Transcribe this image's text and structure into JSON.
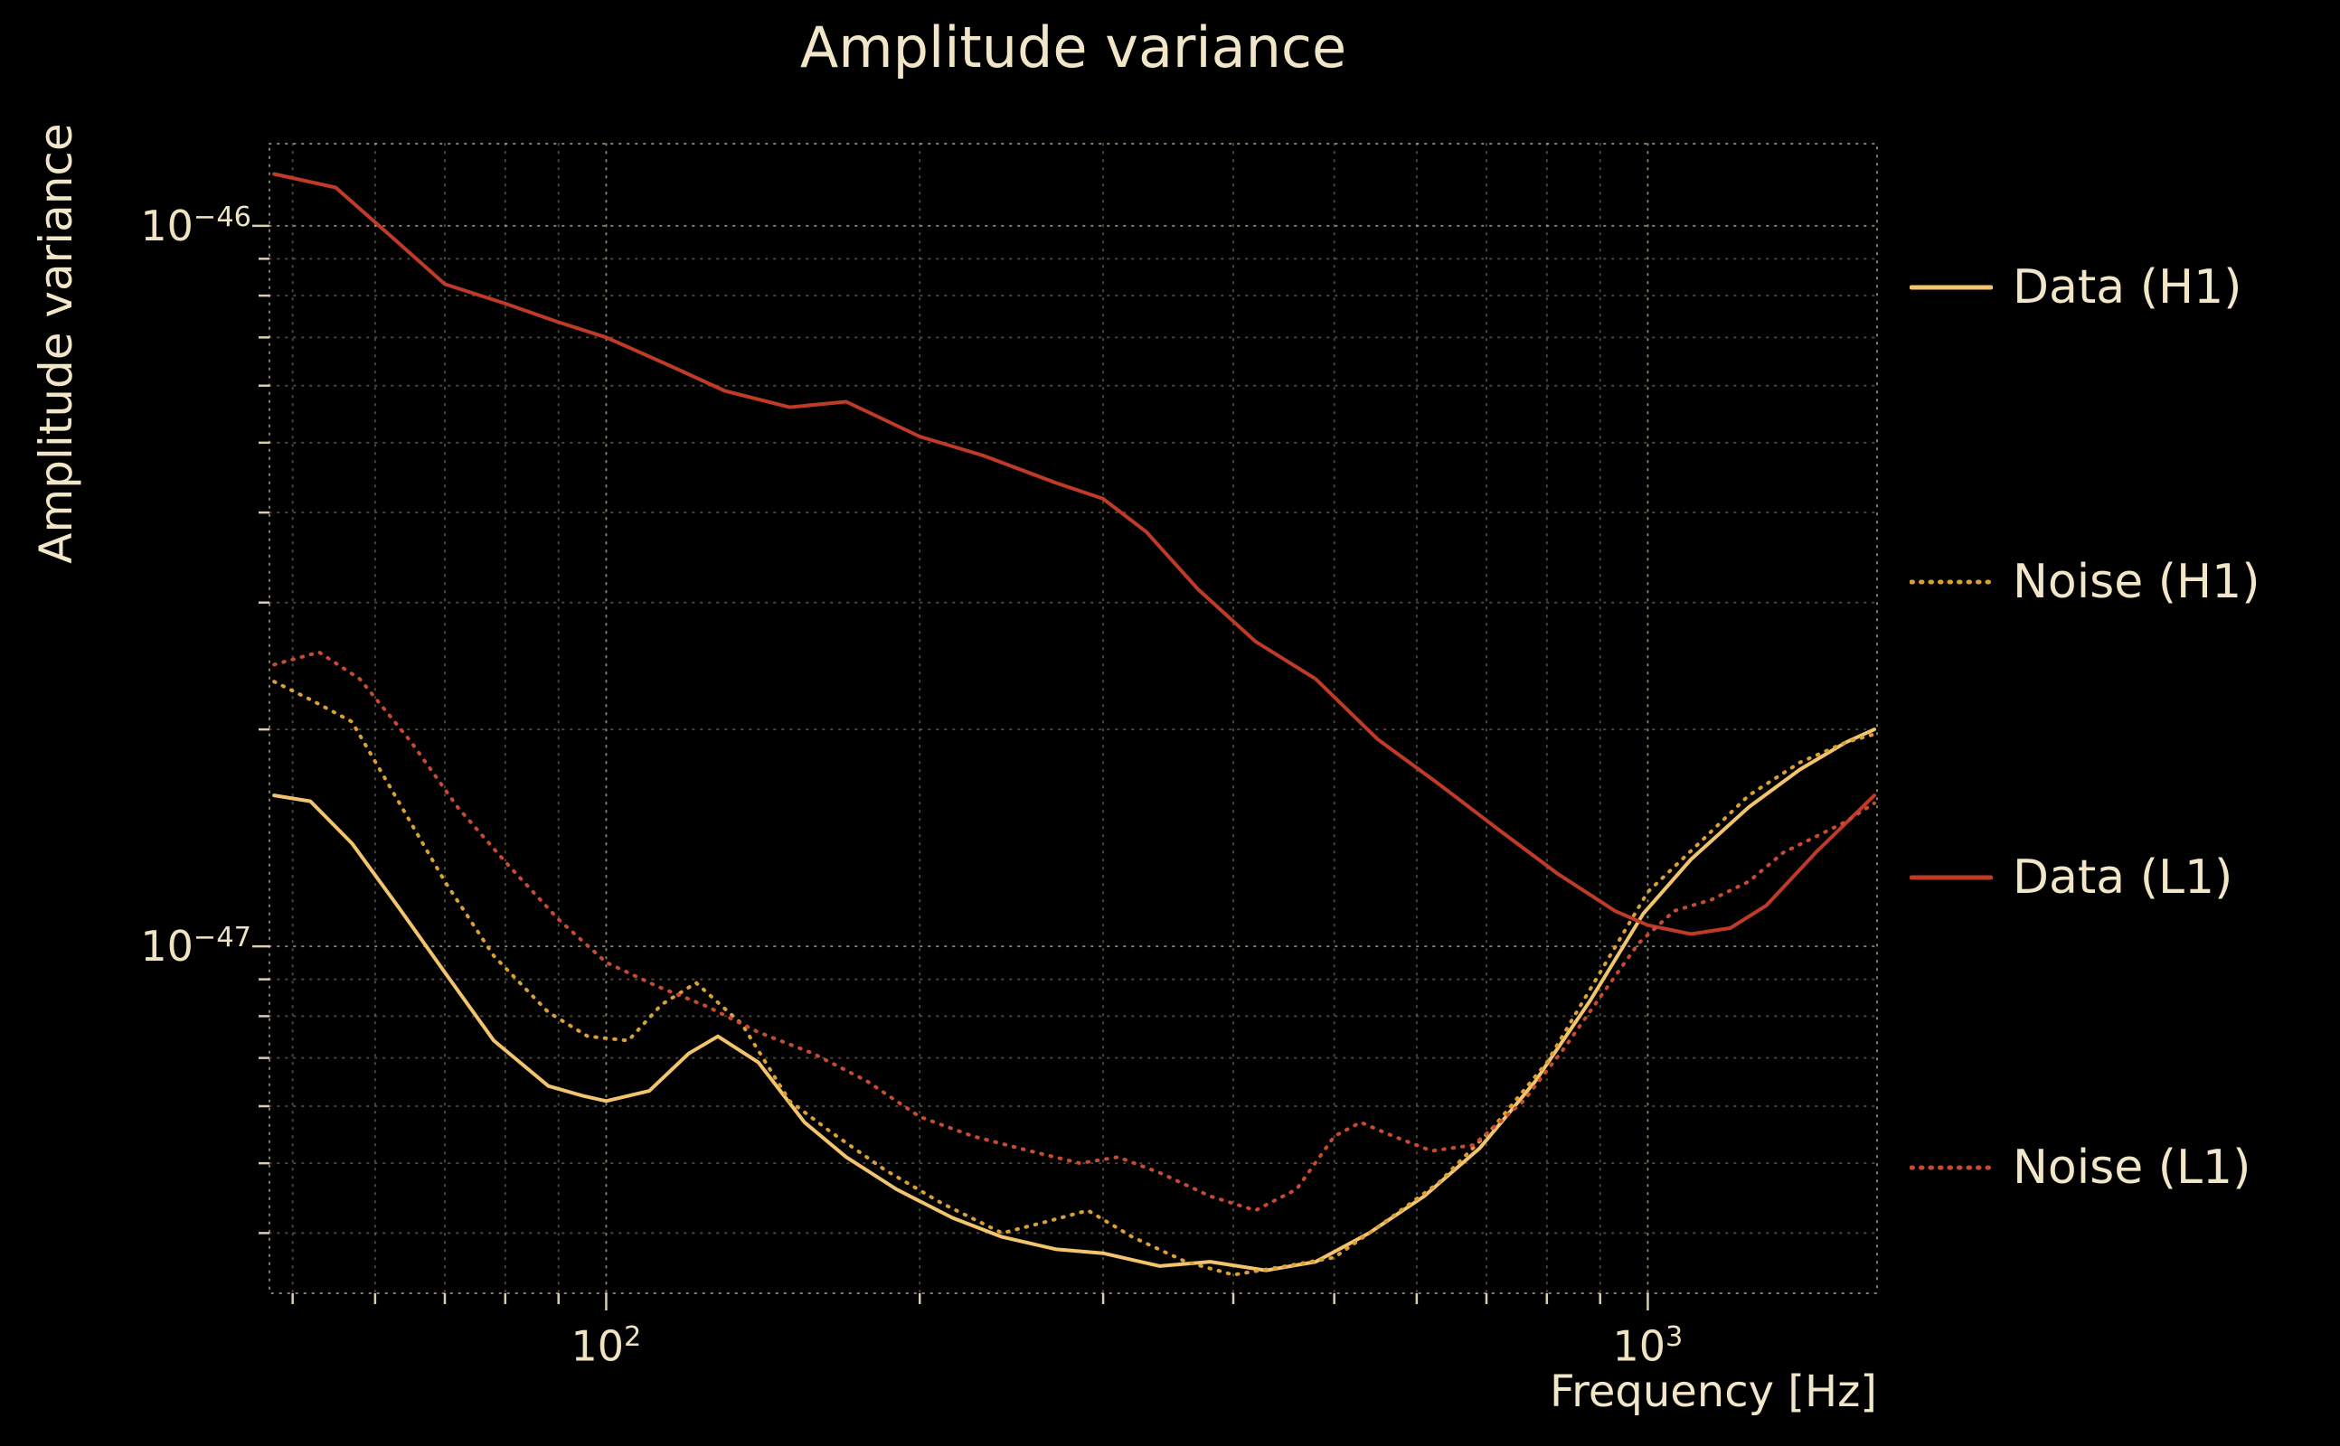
{
  "colors": {
    "background": "#000000",
    "text": "#f2e6c8",
    "grid": "#f2e4c3"
  },
  "chart_data": {
    "type": "line",
    "title": "Amplitude variance",
    "xlabel": "Frequency [Hz]",
    "ylabel": "Amplitude variance",
    "x_scale": "log",
    "y_scale": "log",
    "x_range": [
      47.5,
      1660
    ],
    "y_range": [
      3.3e-48,
      1.3e-46
    ],
    "grid": "both, dotted",
    "legend_position": "outside-right",
    "x_major_ticks": [
      {
        "value": 100,
        "base": "10",
        "exp": "2"
      },
      {
        "value": 1000,
        "base": "10",
        "exp": "3"
      }
    ],
    "y_major_ticks": [
      {
        "value": 1e-46,
        "base": "10",
        "exp": "−46"
      },
      {
        "value": 1e-47,
        "base": "10",
        "exp": "−47"
      }
    ],
    "x_minor_ticks": [
      50,
      60,
      70,
      80,
      90,
      200,
      300,
      400,
      500,
      600,
      700,
      800,
      900
    ],
    "y_minor_ticks": [
      2e-47,
      3e-47,
      4e-47,
      5e-47,
      6e-47,
      7e-47,
      8e-47,
      9e-47,
      4e-48,
      5e-48,
      6e-48,
      7e-48,
      8e-48,
      9e-48
    ],
    "series": [
      {
        "name": "Data (H1)",
        "color": "#f2c46d",
        "style": "solid",
        "x": [
          48,
          52,
          57,
          63,
          70,
          78,
          88,
          95,
          100,
          110,
          120,
          128,
          140,
          155,
          170,
          190,
          215,
          240,
          270,
          300,
          340,
          380,
          430,
          480,
          540,
          610,
          690,
          780,
          880,
          990,
          1100,
          1250,
          1400,
          1550,
          1650
        ],
        "y": [
          1.62e-47,
          1.59e-47,
          1.39e-47,
          1.14e-47,
          9.2e-48,
          7.4e-48,
          6.4e-48,
          6.2e-48,
          6.1e-48,
          6.3e-48,
          7.1e-48,
          7.5e-48,
          6.9e-48,
          5.7e-48,
          5.1e-48,
          4.6e-48,
          4.2e-48,
          3.95e-48,
          3.8e-48,
          3.75e-48,
          3.6e-48,
          3.65e-48,
          3.55e-48,
          3.65e-48,
          4e-48,
          4.5e-48,
          5.25e-48,
          6.5e-48,
          8.4e-48,
          1.11e-47,
          1.32e-47,
          1.56e-47,
          1.76e-47,
          1.92e-47,
          2e-47
        ]
      },
      {
        "name": "Noise (H1)",
        "color": "#d9a036",
        "style": "dotted",
        "x": [
          48,
          52,
          57,
          63,
          70,
          78,
          88,
          96,
          105,
          113,
          122,
          135,
          150,
          165,
          185,
          210,
          240,
          265,
          290,
          320,
          360,
          400,
          450,
          500,
          560,
          630,
          710,
          800,
          900,
          1000,
          1120,
          1250,
          1400,
          1550,
          1650
        ],
        "y": [
          2.33e-47,
          2.2e-47,
          2.05e-47,
          1.6e-47,
          1.23e-47,
          9.7e-48,
          8.1e-48,
          7.5e-48,
          7.4e-48,
          8.3e-48,
          8.9e-48,
          7.8e-48,
          6.1e-48,
          5.5e-48,
          4.9e-48,
          4.4e-48,
          4e-48,
          4.15e-48,
          4.3e-48,
          3.95e-48,
          3.65e-48,
          3.5e-48,
          3.6e-48,
          3.7e-48,
          4.15e-48,
          4.7e-48,
          5.6e-48,
          6.9e-48,
          9.2e-48,
          1.19e-47,
          1.39e-47,
          1.62e-47,
          1.8e-47,
          1.92e-47,
          1.97e-47
        ]
      },
      {
        "name": "Data (L1)",
        "color": "#bf3b28",
        "style": "solid",
        "x": [
          48,
          55,
          62,
          70,
          80,
          90,
          100,
          115,
          130,
          150,
          170,
          200,
          230,
          270,
          300,
          330,
          370,
          420,
          480,
          550,
          630,
          720,
          820,
          930,
          1000,
          1100,
          1200,
          1300,
          1450,
          1650
        ],
        "y": [
          1.18e-46,
          1.13e-46,
          9.7e-47,
          8.3e-47,
          7.8e-47,
          7.35e-47,
          7e-47,
          6.4e-47,
          5.9e-47,
          5.6e-47,
          5.7e-47,
          5.1e-47,
          4.8e-47,
          4.4e-47,
          4.18e-47,
          3.76e-47,
          3.13e-47,
          2.65e-47,
          2.35e-47,
          1.94e-47,
          1.68e-47,
          1.45e-47,
          1.26e-47,
          1.12e-47,
          1.07e-47,
          1.04e-47,
          1.06e-47,
          1.14e-47,
          1.35e-47,
          1.62e-47
        ]
      },
      {
        "name": "Noise (L1)",
        "color": "#c84a33",
        "style": "dotted",
        "x": [
          48,
          53,
          58,
          65,
          72,
          80,
          90,
          100,
          112,
          125,
          140,
          158,
          178,
          200,
          225,
          255,
          285,
          310,
          340,
          380,
          420,
          460,
          500,
          530,
          570,
          620,
          680,
          760,
          830,
          900,
          980,
          1060,
          1150,
          1250,
          1350,
          1450,
          1550,
          1650
        ],
        "y": [
          2.46e-47,
          2.56e-47,
          2.35e-47,
          1.92e-47,
          1.56e-47,
          1.31e-47,
          1.09e-47,
          9.5e-48,
          8.8e-48,
          8.25e-48,
          7.6e-48,
          7.1e-48,
          6.5e-48,
          5.8e-48,
          5.45e-48,
          5.2e-48,
          5e-48,
          5.1e-48,
          4.85e-48,
          4.5e-48,
          4.3e-48,
          4.6e-48,
          5.45e-48,
          5.7e-48,
          5.45e-48,
          5.2e-48,
          5.3e-48,
          6.1e-48,
          7.2e-48,
          8.5e-48,
          1.01e-47,
          1.12e-47,
          1.16e-47,
          1.23e-47,
          1.35e-47,
          1.42e-47,
          1.49e-47,
          1.58e-47
        ]
      }
    ]
  }
}
